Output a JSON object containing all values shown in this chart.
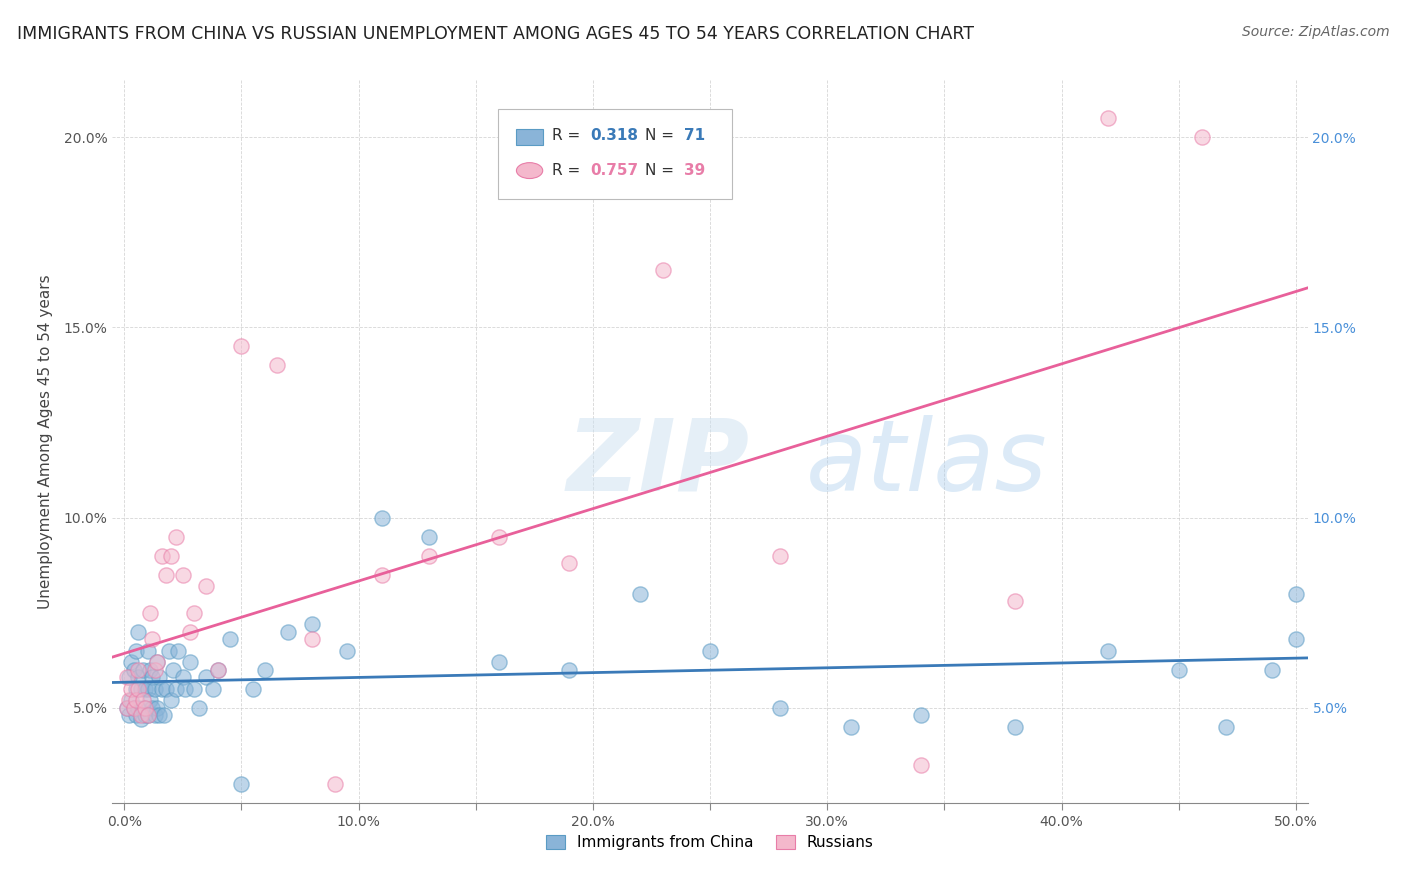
{
  "title": "IMMIGRANTS FROM CHINA VS RUSSIAN UNEMPLOYMENT AMONG AGES 45 TO 54 YEARS CORRELATION CHART",
  "source": "Source: ZipAtlas.com",
  "ylabel": "Unemployment Among Ages 45 to 54 years",
  "xlim": [
    -0.005,
    0.505
  ],
  "ylim": [
    0.025,
    0.215
  ],
  "xticks": [
    0.0,
    0.05,
    0.1,
    0.15,
    0.2,
    0.25,
    0.3,
    0.35,
    0.4,
    0.45,
    0.5
  ],
  "xtick_labels": [
    "0.0%",
    "",
    "10.0%",
    "",
    "20.0%",
    "",
    "30.0%",
    "",
    "40.0%",
    "",
    "50.0%"
  ],
  "yticks": [
    0.05,
    0.1,
    0.15,
    0.2
  ],
  "ytick_labels_left": [
    "5.0%",
    "10.0%",
    "15.0%",
    "20.0%"
  ],
  "ytick_labels_right": [
    "5.0%",
    "10.0%",
    "15.0%",
    "20.0%"
  ],
  "china_color": "#8ab4d8",
  "russia_color": "#f4b8cc",
  "china_edge_color": "#5a9bc4",
  "russia_edge_color": "#e87da8",
  "china_line_color": "#3a7ab8",
  "russia_line_color": "#e8609a",
  "watermark_zip": "ZIP",
  "watermark_atlas": "atlas",
  "china_points_x": [
    0.001,
    0.002,
    0.002,
    0.003,
    0.003,
    0.004,
    0.004,
    0.005,
    0.005,
    0.005,
    0.006,
    0.006,
    0.006,
    0.007,
    0.007,
    0.008,
    0.008,
    0.009,
    0.009,
    0.01,
    0.01,
    0.01,
    0.011,
    0.011,
    0.012,
    0.012,
    0.013,
    0.013,
    0.014,
    0.014,
    0.015,
    0.015,
    0.016,
    0.017,
    0.018,
    0.019,
    0.02,
    0.021,
    0.022,
    0.023,
    0.025,
    0.026,
    0.028,
    0.03,
    0.032,
    0.035,
    0.038,
    0.04,
    0.045,
    0.05,
    0.055,
    0.06,
    0.07,
    0.08,
    0.095,
    0.11,
    0.13,
    0.16,
    0.19,
    0.22,
    0.25,
    0.28,
    0.31,
    0.34,
    0.38,
    0.42,
    0.45,
    0.47,
    0.49,
    0.5,
    0.5
  ],
  "china_points_y": [
    0.05,
    0.048,
    0.058,
    0.052,
    0.062,
    0.05,
    0.06,
    0.048,
    0.055,
    0.065,
    0.05,
    0.058,
    0.07,
    0.047,
    0.055,
    0.05,
    0.06,
    0.048,
    0.055,
    0.048,
    0.055,
    0.065,
    0.052,
    0.06,
    0.05,
    0.058,
    0.048,
    0.055,
    0.05,
    0.062,
    0.048,
    0.058,
    0.055,
    0.048,
    0.055,
    0.065,
    0.052,
    0.06,
    0.055,
    0.065,
    0.058,
    0.055,
    0.062,
    0.055,
    0.05,
    0.058,
    0.055,
    0.06,
    0.068,
    0.03,
    0.055,
    0.06,
    0.07,
    0.072,
    0.065,
    0.1,
    0.095,
    0.062,
    0.06,
    0.08,
    0.065,
    0.05,
    0.045,
    0.048,
    0.045,
    0.065,
    0.06,
    0.045,
    0.06,
    0.068,
    0.08
  ],
  "russia_points_x": [
    0.001,
    0.001,
    0.002,
    0.003,
    0.004,
    0.005,
    0.006,
    0.006,
    0.007,
    0.008,
    0.009,
    0.01,
    0.011,
    0.012,
    0.013,
    0.014,
    0.016,
    0.018,
    0.02,
    0.022,
    0.025,
    0.028,
    0.03,
    0.035,
    0.04,
    0.05,
    0.065,
    0.08,
    0.09,
    0.11,
    0.13,
    0.16,
    0.19,
    0.23,
    0.28,
    0.34,
    0.38,
    0.42,
    0.46
  ],
  "russia_points_y": [
    0.05,
    0.058,
    0.052,
    0.055,
    0.05,
    0.052,
    0.055,
    0.06,
    0.048,
    0.052,
    0.05,
    0.048,
    0.075,
    0.068,
    0.06,
    0.062,
    0.09,
    0.085,
    0.09,
    0.095,
    0.085,
    0.07,
    0.075,
    0.082,
    0.06,
    0.145,
    0.14,
    0.068,
    0.03,
    0.085,
    0.09,
    0.095,
    0.088,
    0.165,
    0.09,
    0.035,
    0.078,
    0.205,
    0.2
  ],
  "figsize": [
    14.06,
    8.92
  ],
  "dpi": 100
}
